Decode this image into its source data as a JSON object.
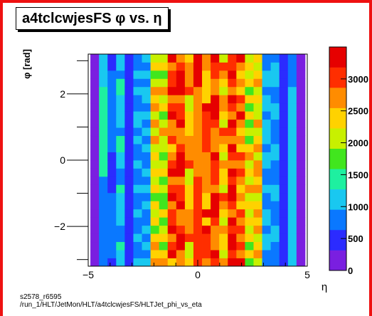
{
  "title": "a4tclcwjesFS φ vs. η",
  "footer": {
    "line1": "s2578_r6595",
    "line2": "/run_1/HLT/JetMon/HLT/a4tclcwjesFS/HLTJet_phi_vs_eta"
  },
  "colors": {
    "frame": "#ee1111",
    "palette": [
      "#7a1fe0",
      "#2b2bff",
      "#0a78ff",
      "#19c8f0",
      "#1ef0a0",
      "#41e61e",
      "#c8f000",
      "#ffd200",
      "#ff8c00",
      "#ff2e00",
      "#e60000"
    ]
  },
  "chart_data": {
    "type": "heatmap",
    "xlabel": "η",
    "ylabel": "φ [rad]",
    "xlim": [
      -5,
      5
    ],
    "ylim": [
      -3.2,
      3.2
    ],
    "x_ticks": [
      "−5",
      "0",
      "5"
    ],
    "x_tick_values": [
      -5,
      0,
      5
    ],
    "y_ticks": [
      "−2",
      "0",
      "2"
    ],
    "y_tick_values": [
      -2,
      0,
      2
    ],
    "z_range": [
      0,
      3500
    ],
    "z_ticks": [
      "0",
      "500",
      "1000",
      "1500",
      "2000",
      "2500",
      "3000"
    ],
    "z_tick_values": [
      0,
      500,
      1000,
      1500,
      2000,
      2500,
      3000
    ],
    "eta_bins": [
      -4.9,
      4.9
    ],
    "phi_bins": [
      -3.2,
      3.2
    ],
    "n_eta_bins": 25,
    "n_phi_bins": 26,
    "column_mean_counts": [
      50,
      1100,
      700,
      1100,
      500,
      900,
      1000,
      2300,
      2100,
      2900,
      3000,
      2500,
      3100,
      2800,
      3000,
      2500,
      3100,
      2800,
      2200,
      2400,
      1000,
      900,
      500,
      1100,
      50
    ]
  }
}
